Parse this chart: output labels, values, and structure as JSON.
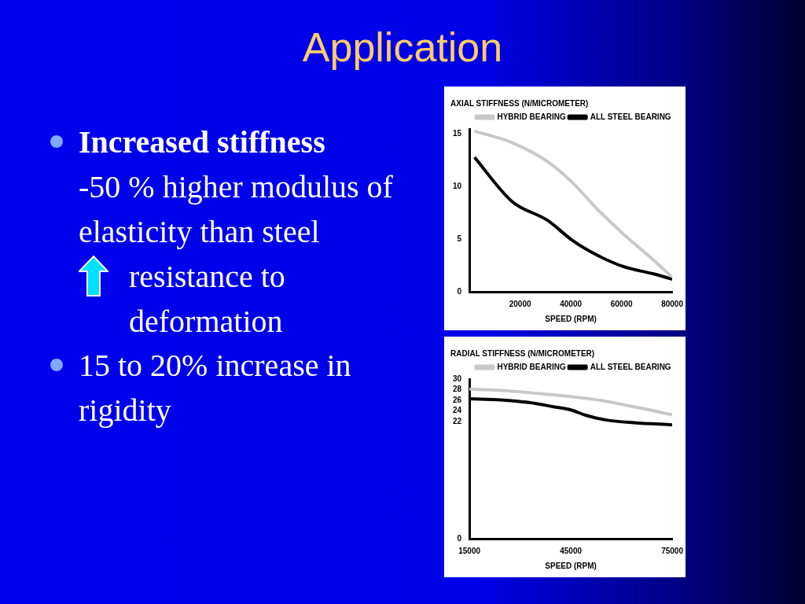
{
  "chart_data": [
    {
      "type": "other",
      "title": "Application",
      "annotations": [
        "Increased stiffness",
        "-50 % higher modulus of elasticity than steel",
        "resistance to deformation",
        "15 to 20% increase in rigidity"
      ]
    },
    {
      "type": "line",
      "title": "AXIAL STIFFNESS (N/MICROMETER)",
      "xlabel": "SPEED (RPM)",
      "x": [
        2000,
        16800,
        30800,
        40600,
        50300,
        60700,
        72700,
        80000
      ],
      "series": [
        {
          "name": "HYBRID BEARING",
          "color": "#c8c8c8",
          "values": [
            15.3,
            14.2,
            12.4,
            10.4,
            7.9,
            5.5,
            3.0,
            1.4
          ]
        },
        {
          "name": "ALL STEEL BEARING",
          "color": "#000000",
          "values": [
            12.8,
            8.6,
            6.8,
            4.9,
            3.5,
            2.4,
            1.7,
            1.2
          ]
        }
      ],
      "xlim": [
        0,
        80000
      ],
      "xticks": [
        20000,
        40000,
        60000,
        80000
      ],
      "ylim": [
        0,
        15.5
      ],
      "yticks": [
        0,
        5,
        10,
        15
      ],
      "grid": false,
      "legend": "top right"
    },
    {
      "type": "line",
      "title": "RADIAL STIFFNESS (N/MICROMETER)",
      "xlabel": "SPEED (RPM)",
      "series": [
        {
          "name": "HYBRID BEARING",
          "color": "#c8c8c8",
          "x": [
            15000,
            26500,
            36800,
            45000,
            53700,
            63700,
            75000
          ],
          "values": [
            28.1,
            27.8,
            27.2,
            26.7,
            26.0,
            24.8,
            23.3
          ]
        },
        {
          "name": "ALL STEEL BEARING",
          "color": "#000000",
          "x": [
            15000,
            24300,
            32600,
            39900,
            45000,
            49400,
            55600,
            63700,
            75000
          ],
          "values": [
            26.3,
            26.1,
            25.6,
            24.8,
            24.2,
            23.2,
            22.3,
            21.8,
            21.4
          ]
        }
      ],
      "xlim": [
        15000,
        75000
      ],
      "xticks": [
        15000,
        45000,
        75000
      ],
      "ylim": [
        0,
        30
      ],
      "yticks": [
        0,
        22,
        24,
        26,
        28,
        30
      ],
      "grid": false,
      "legend": "top right"
    }
  ]
}
